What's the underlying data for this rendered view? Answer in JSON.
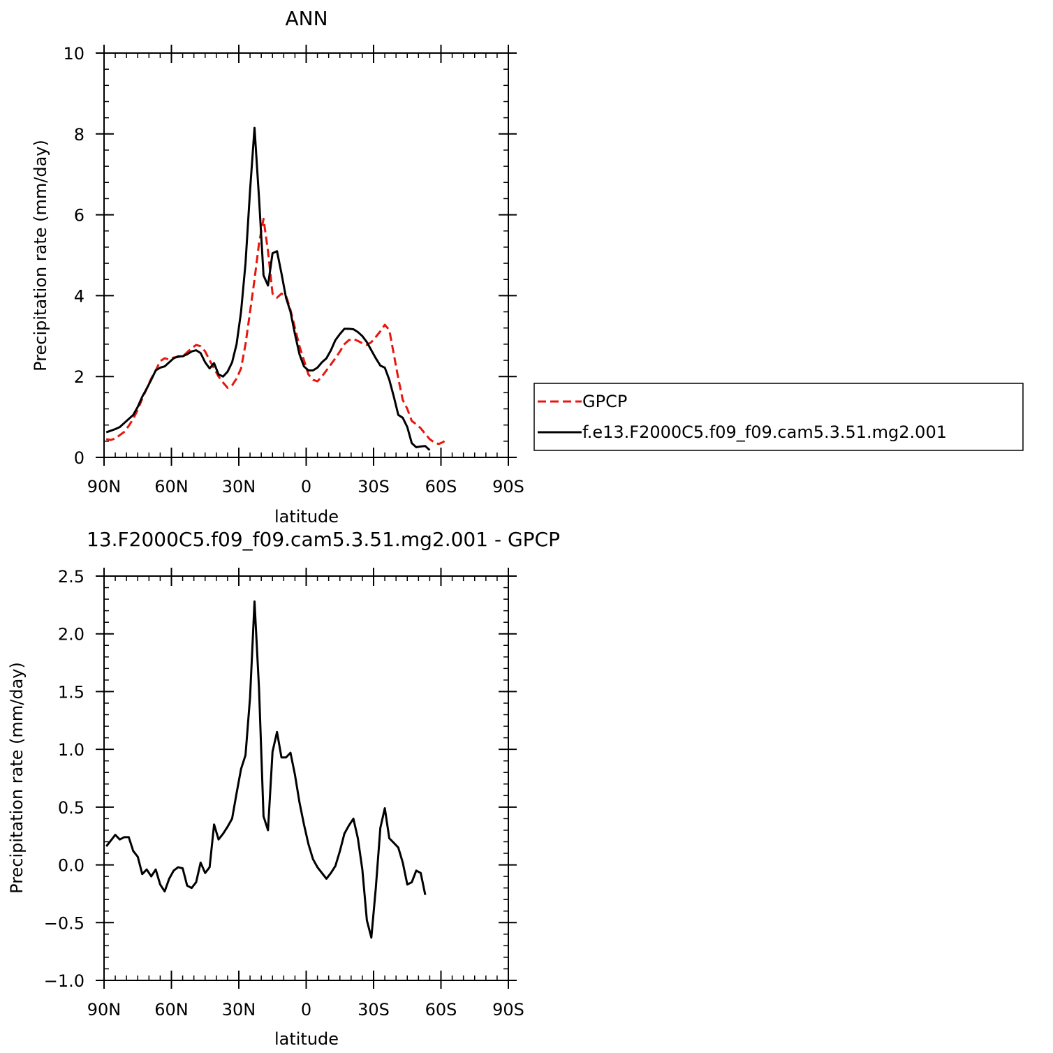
{
  "chart_data": [
    {
      "type": "line",
      "title": "ANN",
      "xlabel": "latitude",
      "ylabel": "Precipitation rate (mm/day)",
      "xlim": [
        90,
        -90
      ],
      "ylim": [
        0,
        10
      ],
      "x_ticks": [
        {
          "value": 90,
          "label": "90N"
        },
        {
          "value": 60,
          "label": "60N"
        },
        {
          "value": 30,
          "label": "30N"
        },
        {
          "value": 0,
          "label": "0"
        },
        {
          "value": -30,
          "label": "30S"
        },
        {
          "value": -60,
          "label": "60S"
        },
        {
          "value": -90,
          "label": "90S"
        }
      ],
      "y_ticks": [
        {
          "value": 0,
          "label": "0"
        },
        {
          "value": 2,
          "label": "2"
        },
        {
          "value": 4,
          "label": "4"
        },
        {
          "value": 6,
          "label": "6"
        },
        {
          "value": 8,
          "label": "8"
        },
        {
          "value": 10,
          "label": "10"
        }
      ],
      "legend": {
        "position": "right",
        "entries": [
          "GPCP",
          "f.e13.F2000C5.f09_f09.cam5.3.51.mg2.001"
        ]
      },
      "series": [
        {
          "name": "GPCP",
          "color": "#e8150c",
          "dash": true,
          "points": [
            [
              89,
              0.45
            ],
            [
              87,
              0.43
            ],
            [
              85,
              0.47
            ],
            [
              83,
              0.55
            ],
            [
              81,
              0.63
            ],
            [
              79,
              0.78
            ],
            [
              77,
              0.95
            ],
            [
              75,
              1.18
            ],
            [
              73,
              1.45
            ],
            [
              71,
              1.7
            ],
            [
              69,
              1.95
            ],
            [
              67,
              2.15
            ],
            [
              65,
              2.38
            ],
            [
              63,
              2.45
            ],
            [
              61,
              2.42
            ],
            [
              59,
              2.47
            ],
            [
              57,
              2.48
            ],
            [
              55,
              2.5
            ],
            [
              53,
              2.6
            ],
            [
              51,
              2.7
            ],
            [
              49,
              2.78
            ],
            [
              47,
              2.75
            ],
            [
              45,
              2.62
            ],
            [
              43,
              2.4
            ],
            [
              41,
              2.2
            ],
            [
              39,
              2.0
            ],
            [
              37,
              1.85
            ],
            [
              35,
              1.72
            ],
            [
              33,
              1.78
            ],
            [
              31,
              1.95
            ],
            [
              29,
              2.2
            ],
            [
              27,
              2.8
            ],
            [
              25,
              3.6
            ],
            [
              23,
              4.4
            ],
            [
              21,
              5.3
            ],
            [
              19,
              5.9
            ],
            [
              17,
              5.1
            ],
            [
              15,
              4.05
            ],
            [
              13,
              3.95
            ],
            [
              11,
              4.05
            ],
            [
              9,
              4.0
            ],
            [
              7,
              3.65
            ],
            [
              5,
              3.2
            ],
            [
              3,
              2.75
            ],
            [
              1,
              2.4
            ],
            [
              -1,
              2.05
            ],
            [
              -3,
              1.92
            ],
            [
              -5,
              1.88
            ],
            [
              -7,
              2.0
            ],
            [
              -9,
              2.15
            ],
            [
              -11,
              2.3
            ],
            [
              -13,
              2.45
            ],
            [
              -15,
              2.62
            ],
            [
              -17,
              2.8
            ],
            [
              -19,
              2.9
            ],
            [
              -21,
              2.93
            ],
            [
              -23,
              2.88
            ],
            [
              -25,
              2.82
            ],
            [
              -27,
              2.78
            ],
            [
              -29,
              2.85
            ],
            [
              -31,
              2.98
            ],
            [
              -33,
              3.12
            ],
            [
              -35,
              3.28
            ],
            [
              -37,
              3.15
            ],
            [
              -39,
              2.55
            ],
            [
              -41,
              1.95
            ],
            [
              -43,
              1.42
            ],
            [
              -45,
              1.2
            ],
            [
              -47,
              0.9
            ],
            [
              -49,
              0.82
            ],
            [
              -51,
              0.72
            ],
            [
              -53,
              0.58
            ],
            [
              -55,
              0.45
            ],
            [
              -57,
              0.37
            ],
            [
              -59,
              0.33
            ],
            [
              -61,
              0.38
            ],
            [
              -63,
              0.45
            ]
          ]
        },
        {
          "name": "f.e13.F2000C5.f09_f09.cam5.3.51.mg2.001",
          "color": "#000000",
          "dash": false,
          "points": [
            [
              89,
              0.62
            ],
            [
              87,
              0.66
            ],
            [
              85,
              0.7
            ],
            [
              83,
              0.75
            ],
            [
              81,
              0.85
            ],
            [
              79,
              0.95
            ],
            [
              77,
              1.05
            ],
            [
              75,
              1.25
            ],
            [
              73,
              1.5
            ],
            [
              71,
              1.7
            ],
            [
              69,
              1.92
            ],
            [
              67,
              2.15
            ],
            [
              65,
              2.22
            ],
            [
              63,
              2.25
            ],
            [
              61,
              2.35
            ],
            [
              59,
              2.45
            ],
            [
              57,
              2.5
            ],
            [
              55,
              2.5
            ],
            [
              53,
              2.55
            ],
            [
              51,
              2.62
            ],
            [
              49,
              2.65
            ],
            [
              47,
              2.58
            ],
            [
              45,
              2.35
            ],
            [
              43,
              2.2
            ],
            [
              41,
              2.33
            ],
            [
              39,
              2.05
            ],
            [
              37,
              2.0
            ],
            [
              35,
              2.12
            ],
            [
              33,
              2.35
            ],
            [
              31,
              2.8
            ],
            [
              29,
              3.6
            ],
            [
              27,
              4.8
            ],
            [
              25,
              6.6
            ],
            [
              23,
              8.15
            ],
            [
              21,
              6.4
            ],
            [
              19,
              4.5
            ],
            [
              17,
              4.25
            ],
            [
              15,
              5.05
            ],
            [
              13,
              5.1
            ],
            [
              11,
              4.55
            ],
            [
              9,
              3.95
            ],
            [
              7,
              3.6
            ],
            [
              5,
              3.05
            ],
            [
              3,
              2.55
            ],
            [
              1,
              2.25
            ],
            [
              -1,
              2.15
            ],
            [
              -3,
              2.15
            ],
            [
              -5,
              2.22
            ],
            [
              -7,
              2.35
            ],
            [
              -9,
              2.45
            ],
            [
              -11,
              2.65
            ],
            [
              -13,
              2.9
            ],
            [
              -15,
              3.05
            ],
            [
              -17,
              3.18
            ],
            [
              -19,
              3.18
            ],
            [
              -21,
              3.17
            ],
            [
              -23,
              3.1
            ],
            [
              -25,
              3.0
            ],
            [
              -27,
              2.85
            ],
            [
              -29,
              2.65
            ],
            [
              -31,
              2.45
            ],
            [
              -33,
              2.27
            ],
            [
              -35,
              2.22
            ],
            [
              -37,
              1.92
            ],
            [
              -39,
              1.5
            ],
            [
              -41,
              1.05
            ],
            [
              -43,
              0.98
            ],
            [
              -45,
              0.75
            ],
            [
              -47,
              0.35
            ],
            [
              -49,
              0.25
            ],
            [
              -51,
              0.27
            ],
            [
              -53,
              0.28
            ],
            [
              -55,
              0.18
            ]
          ]
        }
      ]
    },
    {
      "type": "line",
      "title": "13.F2000C5.f09_f09.cam5.3.51.mg2.001 - GPCP",
      "xlabel": "latitude",
      "ylabel": "Precipitation rate (mm/day)",
      "xlim": [
        90,
        -90
      ],
      "ylim": [
        -1.0,
        2.5
      ],
      "x_ticks": [
        {
          "value": 90,
          "label": "90N"
        },
        {
          "value": 60,
          "label": "60N"
        },
        {
          "value": 30,
          "label": "30N"
        },
        {
          "value": 0,
          "label": "0"
        },
        {
          "value": -30,
          "label": "30S"
        },
        {
          "value": -60,
          "label": "60S"
        },
        {
          "value": -90,
          "label": "90S"
        }
      ],
      "y_ticks": [
        {
          "value": -1.0,
          "label": "−1.0"
        },
        {
          "value": -0.5,
          "label": "−0.5"
        },
        {
          "value": 0.0,
          "label": "0.0"
        },
        {
          "value": 0.5,
          "label": "0.5"
        },
        {
          "value": 1.0,
          "label": "1.0"
        },
        {
          "value": 1.5,
          "label": "1.5"
        },
        {
          "value": 2.0,
          "label": "2.0"
        },
        {
          "value": 2.5,
          "label": "2.5"
        }
      ],
      "series": [
        {
          "color": "#000000",
          "dash": false,
          "points": [
            [
              89,
              0.16
            ],
            [
              87,
              0.21
            ],
            [
              85,
              0.26
            ],
            [
              83,
              0.22
            ],
            [
              81,
              0.24
            ],
            [
              79,
              0.24
            ],
            [
              77,
              0.12
            ],
            [
              75,
              0.07
            ],
            [
              73,
              -0.08
            ],
            [
              71,
              -0.04
            ],
            [
              69,
              -0.1
            ],
            [
              67,
              -0.04
            ],
            [
              65,
              -0.17
            ],
            [
              63,
              -0.23
            ],
            [
              61,
              -0.12
            ],
            [
              59,
              -0.05
            ],
            [
              57,
              -0.02
            ],
            [
              55,
              -0.03
            ],
            [
              53,
              -0.18
            ],
            [
              51,
              -0.2
            ],
            [
              49,
              -0.15
            ],
            [
              47,
              0.02
            ],
            [
              45,
              -0.07
            ],
            [
              43,
              -0.02
            ],
            [
              41,
              0.35
            ],
            [
              39,
              0.22
            ],
            [
              37,
              0.27
            ],
            [
              35,
              0.33
            ],
            [
              33,
              0.4
            ],
            [
              31,
              0.62
            ],
            [
              29,
              0.83
            ],
            [
              27,
              0.95
            ],
            [
              25,
              1.45
            ],
            [
              23,
              2.28
            ],
            [
              21,
              1.52
            ],
            [
              19,
              0.42
            ],
            [
              17,
              0.3
            ],
            [
              15,
              0.98
            ],
            [
              13,
              1.15
            ],
            [
              11,
              0.93
            ],
            [
              9,
              0.93
            ],
            [
              7,
              0.97
            ],
            [
              5,
              0.78
            ],
            [
              3,
              0.54
            ],
            [
              1,
              0.35
            ],
            [
              -1,
              0.18
            ],
            [
              -3,
              0.05
            ],
            [
              -5,
              -0.02
            ],
            [
              -7,
              -0.07
            ],
            [
              -9,
              -0.12
            ],
            [
              -11,
              -0.07
            ],
            [
              -13,
              -0.01
            ],
            [
              -15,
              0.12
            ],
            [
              -17,
              0.27
            ],
            [
              -19,
              0.34
            ],
            [
              -21,
              0.4
            ],
            [
              -23,
              0.23
            ],
            [
              -25,
              -0.04
            ],
            [
              -27,
              -0.48
            ],
            [
              -29,
              -0.63
            ],
            [
              -31,
              -0.2
            ],
            [
              -33,
              0.32
            ],
            [
              -35,
              0.49
            ],
            [
              -37,
              0.23
            ],
            [
              -39,
              0.19
            ],
            [
              -41,
              0.15
            ],
            [
              -43,
              0.02
            ],
            [
              -45,
              -0.17
            ],
            [
              -47,
              -0.15
            ],
            [
              -49,
              -0.05
            ],
            [
              -51,
              -0.07
            ],
            [
              -53,
              -0.26
            ]
          ]
        }
      ]
    }
  ]
}
